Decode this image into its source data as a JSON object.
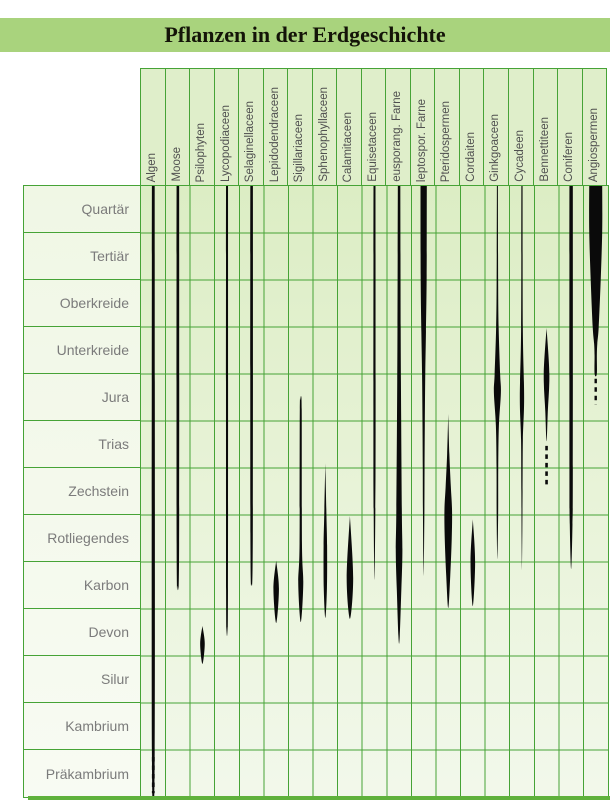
{
  "title": "Pflanzen in der Erdgeschichte",
  "chart_data": {
    "type": "area",
    "variant": "spindle-diagram-range-chart",
    "title": "Pflanzen in der Erdgeschichte",
    "orientation": "columns = plant groups, rows = geological periods (youngest at top)",
    "grid": "on",
    "periods": [
      "Quartär",
      "Tertiär",
      "Oberkreide",
      "Unterkreide",
      "Jura",
      "Trias",
      "Zechstein",
      "Rotliegendes",
      "Karbon",
      "Devon",
      "Silur",
      "Kambrium",
      "Präkambrium"
    ],
    "taxa": [
      "Algen",
      "Moose",
      "Psilophyten",
      "Lycopodiaceen",
      "Selaginellaceen",
      "Lepidodendraceen",
      "Sigillariaceen",
      "Sphenophyllaceen",
      "Calamitaceen",
      "Equisetaceen",
      "eusporang. Farne",
      "leptospor. Farne",
      "Pteridospermen",
      "Cordaiten",
      "Ginkgoaceen",
      "Cycadeen",
      "Bennettiteen",
      "Coniferen",
      "Angiospermen"
    ],
    "units": {
      "profile_point": "[period_position, spindle_width_px] where period_position 0 = top of Quartär, 13 = bottom of Präkambrium (1 unit = one period row)",
      "dash": "dashed (uncertain) range of the lineage"
    },
    "series": [
      {
        "name": "Algen",
        "profile": [
          [
            0,
            2.8
          ],
          [
            12.03,
            2.8
          ]
        ],
        "dash": {
          "from": 12.15,
          "to": 12.92,
          "width": 2.8
        }
      },
      {
        "name": "Moose",
        "profile": [
          [
            0,
            2.6
          ],
          [
            7.6,
            2.5
          ],
          [
            8.51,
            0
          ]
        ],
        "dash": null
      },
      {
        "name": "Psilophyten",
        "profile": [
          [
            9.36,
            0
          ],
          [
            9.74,
            4.6
          ],
          [
            10.17,
            0
          ]
        ],
        "dash": null
      },
      {
        "name": "Lycopodiaceen",
        "profile": [
          [
            0,
            2.0
          ],
          [
            8.6,
            1.9
          ],
          [
            9.38,
            0
          ]
        ],
        "dash": null
      },
      {
        "name": "Selaginellaceen",
        "profile": [
          [
            0,
            2.6
          ],
          [
            7.4,
            2.4
          ],
          [
            8.47,
            0
          ]
        ],
        "dash": null
      },
      {
        "name": "Lepidodendraceen",
        "profile": [
          [
            7.97,
            0
          ],
          [
            8.57,
            5.5
          ],
          [
            9.3,
            0
          ]
        ],
        "dash": null
      },
      {
        "name": "Sigillariaceen",
        "profile": [
          [
            4.55,
            0
          ],
          [
            4.75,
            1.9
          ],
          [
            7.6,
            2.4
          ],
          [
            8.47,
            5.0
          ],
          [
            9.28,
            0
          ]
        ],
        "dash": null
      },
      {
        "name": "Sphenophyllaceen",
        "profile": [
          [
            5.9,
            0
          ],
          [
            7.0,
            2.2
          ],
          [
            7.65,
            3.5
          ],
          [
            8.55,
            3.2
          ],
          [
            9.19,
            0
          ]
        ],
        "dash": null
      },
      {
        "name": "Calamitaceen",
        "profile": [
          [
            7.02,
            0
          ],
          [
            8.35,
            6.5
          ],
          [
            9.21,
            0
          ]
        ],
        "dash": null
      },
      {
        "name": "Equisetaceen",
        "profile": [
          [
            0,
            2.0
          ],
          [
            5.2,
            2.2
          ],
          [
            7.0,
            1.6
          ],
          [
            8.38,
            0
          ]
        ],
        "dash": null
      },
      {
        "name": "eusporang. Farne",
        "profile": [
          [
            0,
            2.5
          ],
          [
            3,
            3.2
          ],
          [
            5,
            4.2
          ],
          [
            7,
            5.6
          ],
          [
            7.8,
            6.6
          ],
          [
            8.6,
            4.5
          ],
          [
            9.74,
            0
          ]
        ],
        "dash": null
      },
      {
        "name": "leptospor. Farne",
        "profile": [
          [
            0,
            6.3
          ],
          [
            1.9,
            6.0
          ],
          [
            3.1,
            4.6
          ],
          [
            4,
            3.2
          ],
          [
            5.1,
            2.3
          ],
          [
            6,
            1.8
          ],
          [
            7,
            1.4
          ],
          [
            8.3,
            0
          ]
        ],
        "dash": null
      },
      {
        "name": "Pteridospermen",
        "profile": [
          [
            4.85,
            0
          ],
          [
            5.7,
            2.2
          ],
          [
            6.4,
            5.2
          ],
          [
            6.9,
            7.6
          ],
          [
            7.5,
            7.0
          ],
          [
            8.3,
            4.0
          ],
          [
            8.98,
            0
          ]
        ],
        "dash": null
      },
      {
        "name": "Cordaiten",
        "profile": [
          [
            7.09,
            0
          ],
          [
            8.0,
            4.6
          ],
          [
            8.94,
            0
          ]
        ],
        "dash": null
      },
      {
        "name": "Ginkgoaceen",
        "profile": [
          [
            0,
            1.0
          ],
          [
            2,
            1.5
          ],
          [
            3,
            2.5
          ],
          [
            4,
            5.5
          ],
          [
            4.4,
            7.0
          ],
          [
            5.1,
            3.0
          ],
          [
            6,
            1.7
          ],
          [
            7,
            1.5
          ],
          [
            7.94,
            0
          ]
        ],
        "dash": null
      },
      {
        "name": "Cycadeen",
        "profile": [
          [
            0,
            1.2
          ],
          [
            3,
            1.7
          ],
          [
            4.5,
            4.3
          ],
          [
            5.4,
            1.8
          ],
          [
            6.5,
            1.2
          ],
          [
            8.19,
            0
          ]
        ],
        "dash": null
      },
      {
        "name": "Bennettiteen",
        "profile": [
          [
            3.02,
            0
          ],
          [
            4.0,
            5.6
          ],
          [
            4.8,
            2.5
          ],
          [
            5.43,
            0
          ]
        ],
        "dash": {
          "from": 5.53,
          "to": 6.38,
          "width": 2.6
        }
      },
      {
        "name": "Coniferen",
        "profile": [
          [
            0,
            3.4
          ],
          [
            6.0,
            3.4
          ],
          [
            7.2,
            2.7
          ],
          [
            8.15,
            0
          ]
        ],
        "dash": null
      },
      {
        "name": "Angiospermen",
        "profile": [
          [
            0,
            13
          ],
          [
            0.95,
            13
          ],
          [
            2.0,
            10
          ],
          [
            3.0,
            6.0
          ],
          [
            3.35,
            3.2
          ],
          [
            3.6,
            2.3
          ],
          [
            4.0,
            2.2
          ]
        ],
        "dash": {
          "from": 4.1,
          "to": 4.65,
          "width": 2.4
        }
      }
    ],
    "colors": {
      "title_bar_bg": "#a9d37d",
      "title_text": "#141408",
      "grid_line": "#46a336",
      "spindle_fill": "#0a0a0a",
      "plot_bg_top": "#dcedc4",
      "plot_bg_bottom": "#f2f8eb",
      "header_bg": "#dfeeca",
      "label_bg_top": "#f0f7e5",
      "label_bg_bottom": "#f8fbf3",
      "row_label_text": "#7b7b7b",
      "column_header_text": "#4f4f4f",
      "bottom_bar": "#5fb13c"
    }
  }
}
